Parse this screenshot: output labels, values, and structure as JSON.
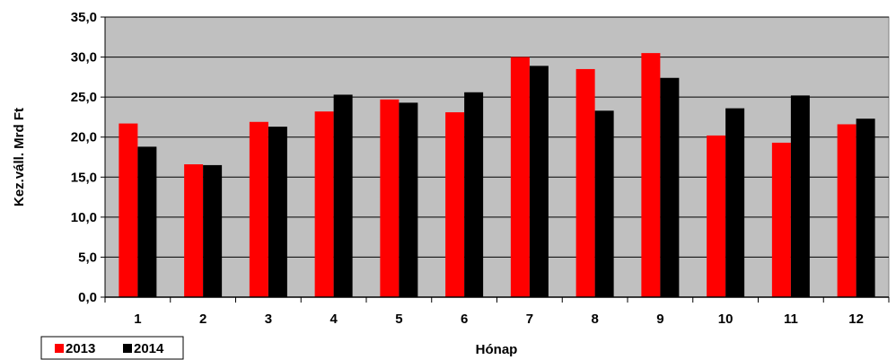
{
  "chart_data": {
    "type": "bar",
    "xlabel": "Hónap",
    "ylabel": "Kez.váll. Mrd Ft",
    "ylim": [
      0,
      35
    ],
    "yticks": [
      "0,0",
      "5,0",
      "10,0",
      "15,0",
      "20,0",
      "25,0",
      "30,0",
      "35,0"
    ],
    "grid": true,
    "legend_position": "bottom-left",
    "categories": [
      "1",
      "2",
      "3",
      "4",
      "5",
      "6",
      "7",
      "8",
      "9",
      "10",
      "11",
      "12"
    ],
    "series": [
      {
        "name": "2013",
        "color": "#ff0000",
        "values": [
          21.7,
          16.6,
          21.9,
          23.2,
          24.7,
          23.1,
          30.0,
          28.5,
          30.5,
          20.2,
          19.3,
          21.6
        ]
      },
      {
        "name": "2014",
        "color": "#000000",
        "values": [
          18.8,
          16.5,
          21.3,
          25.3,
          24.3,
          25.6,
          28.9,
          23.3,
          27.4,
          23.6,
          25.2,
          22.3
        ]
      }
    ],
    "plot_background": "#c0c0c0"
  }
}
